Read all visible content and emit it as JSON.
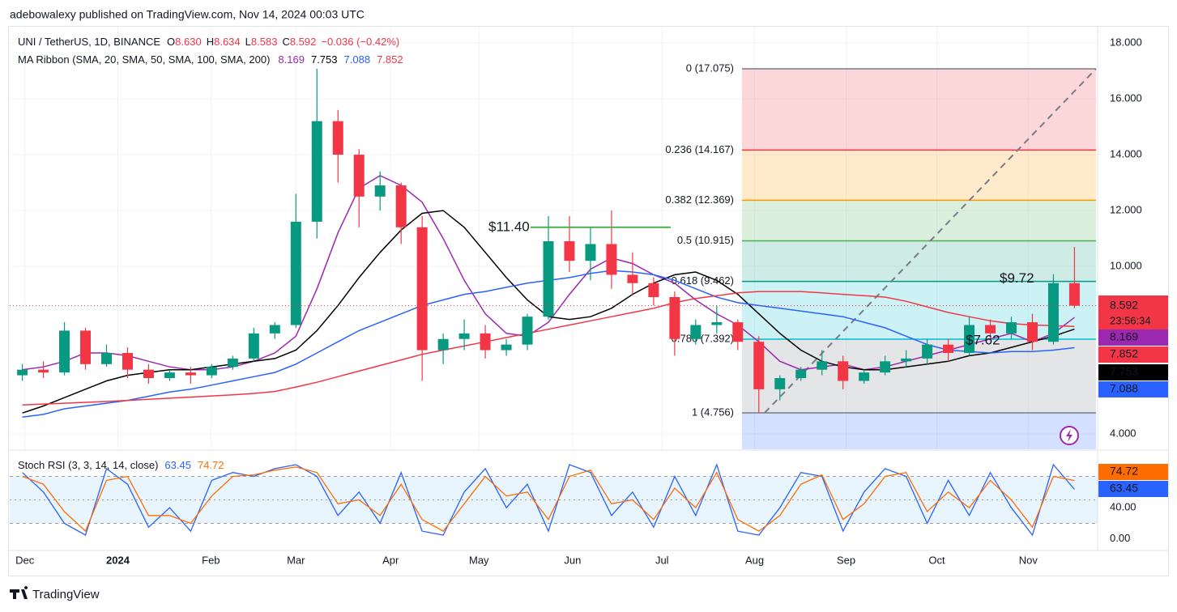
{
  "header": {
    "publisher": "adebowalexy published on TradingView.com, Nov 14, 2024 00:03 UTC",
    "brand": "TradingView"
  },
  "chart_data": [
    {
      "type": "candlestick",
      "title": "UNI / TetherUS, 1D, BINANCE",
      "quote": [
        {
          "key": "O",
          "value": "8.630"
        },
        {
          "key": "H",
          "value": "8.634"
        },
        {
          "key": "L",
          "value": "8.583"
        },
        {
          "key": "C",
          "value": "8.592"
        }
      ],
      "change": "−0.036 (−0.42%)",
      "countdown": "23:56:34",
      "up_color": "#089981",
      "down_color": "#f23645",
      "open": [
        6.1,
        6.3,
        6.2,
        7.7,
        6.5,
        6.9,
        6.3,
        6.0,
        6.2,
        6.1,
        6.4,
        6.7,
        7.6,
        7.9,
        11.6,
        15.2,
        14.0,
        12.5,
        12.9,
        11.4,
        7.0,
        7.4,
        7.6,
        7.0,
        7.2,
        8.2,
        10.9,
        10.2,
        10.8,
        9.7,
        9.4,
        8.9,
        7.4,
        7.9,
        8.0,
        7.3,
        5.6,
        6.0,
        6.3,
        6.6,
        5.9,
        6.2,
        6.6,
        6.7,
        7.2,
        6.9,
        7.9,
        7.6,
        8.0,
        7.3,
        9.4
      ],
      "high": [
        6.5,
        6.6,
        8.0,
        7.8,
        7.2,
        7.1,
        6.5,
        6.3,
        6.4,
        6.5,
        6.8,
        7.8,
        8.0,
        12.6,
        17.075,
        15.6,
        14.2,
        13.4,
        13.0,
        11.8,
        7.6,
        8.1,
        7.9,
        7.4,
        8.3,
        11.8,
        11.8,
        11.4,
        12.0,
        10.5,
        9.6,
        9.1,
        8.1,
        8.6,
        8.1,
        7.5,
        6.1,
        6.4,
        7.0,
        6.8,
        6.3,
        6.8,
        7.0,
        7.4,
        7.4,
        8.2,
        8.1,
        8.2,
        8.3,
        9.72,
        10.7
      ],
      "low": [
        5.9,
        6.0,
        6.1,
        6.3,
        6.4,
        6.0,
        5.8,
        5.9,
        5.8,
        6.0,
        6.3,
        6.6,
        7.4,
        7.8,
        11.0,
        13.0,
        11.4,
        12.0,
        10.8,
        5.9,
        6.5,
        7.0,
        6.7,
        6.8,
        7.0,
        8.1,
        9.8,
        9.5,
        9.2,
        9.0,
        8.6,
        6.8,
        7.2,
        7.6,
        7.0,
        4.756,
        5.2,
        5.9,
        6.1,
        5.6,
        5.8,
        6.1,
        6.4,
        6.5,
        6.6,
        6.8,
        7.4,
        7.4,
        7.0,
        7.2,
        8.5
      ],
      "close": [
        6.3,
        6.2,
        7.7,
        6.5,
        6.9,
        6.3,
        6.0,
        6.2,
        6.1,
        6.4,
        6.7,
        7.6,
        7.9,
        11.6,
        15.2,
        14.0,
        12.5,
        12.9,
        11.4,
        7.0,
        7.4,
        7.6,
        7.0,
        7.2,
        8.2,
        10.9,
        10.2,
        10.8,
        9.7,
        9.4,
        8.9,
        7.4,
        7.9,
        8.0,
        7.3,
        5.6,
        6.0,
        6.3,
        6.6,
        5.9,
        6.2,
        6.6,
        6.7,
        7.2,
        6.9,
        7.9,
        7.6,
        8.0,
        7.3,
        9.4,
        8.592
      ],
      "ribbon_title": "MA Ribbon (SMA, 20, SMA, 50, SMA, 100, SMA, 200)",
      "series": [
        {
          "color": "#9c27b0",
          "values": [
            6.3,
            6.4,
            6.6,
            6.9,
            6.9,
            6.8,
            6.6,
            6.4,
            6.3,
            6.3,
            6.4,
            6.6,
            6.9,
            7.5,
            9.2,
            11.2,
            12.8,
            13.25,
            12.9,
            12.3,
            11.0,
            9.5,
            8.3,
            7.6,
            7.5,
            8.0,
            9.0,
            9.9,
            10.3,
            10.1,
            9.7,
            9.4,
            8.8,
            8.3,
            7.9,
            7.3,
            6.6,
            6.3,
            6.4,
            6.5,
            6.3,
            6.4,
            6.6,
            6.8,
            7.0,
            7.2,
            7.4,
            7.6,
            7.3,
            7.6,
            8.169
          ]
        },
        {
          "color": "#000000",
          "values": [
            4.75,
            5.0,
            5.3,
            5.6,
            5.9,
            6.1,
            6.2,
            6.3,
            6.3,
            6.4,
            6.5,
            6.6,
            6.7,
            7.0,
            7.7,
            8.6,
            9.6,
            10.5,
            11.3,
            11.9,
            12.0,
            11.4,
            10.5,
            9.6,
            8.8,
            8.2,
            8.1,
            8.2,
            8.5,
            9.0,
            9.4,
            9.7,
            9.8,
            9.5,
            9.0,
            8.3,
            7.6,
            7.0,
            6.6,
            6.4,
            6.3,
            6.3,
            6.4,
            6.5,
            6.6,
            6.8,
            6.9,
            7.1,
            7.3,
            7.5,
            7.753
          ]
        },
        {
          "color": "#2962ff",
          "values": [
            4.6,
            4.7,
            4.9,
            5.0,
            5.1,
            5.2,
            5.35,
            5.5,
            5.6,
            5.75,
            5.9,
            6.05,
            6.2,
            6.5,
            6.9,
            7.3,
            7.7,
            8.0,
            8.3,
            8.6,
            8.8,
            9.0,
            9.1,
            9.25,
            9.4,
            9.5,
            9.6,
            9.75,
            9.85,
            9.8,
            9.7,
            9.5,
            9.2,
            8.9,
            8.7,
            8.6,
            8.5,
            8.4,
            8.3,
            8.2,
            8.0,
            7.8,
            7.5,
            7.2,
            7.0,
            6.95,
            6.9,
            6.95,
            6.95,
            7.0,
            7.088
          ]
        },
        {
          "color": "#f23645",
          "values": [
            5.04,
            5.07,
            5.1,
            5.13,
            5.16,
            5.2,
            5.24,
            5.28,
            5.32,
            5.36,
            5.4,
            5.45,
            5.52,
            5.68,
            5.85,
            6.05,
            6.25,
            6.45,
            6.65,
            6.85,
            7.0,
            7.15,
            7.3,
            7.45,
            7.6,
            7.75,
            7.9,
            8.05,
            8.2,
            8.35,
            8.5,
            8.7,
            8.85,
            8.95,
            9.05,
            9.1,
            9.1,
            9.1,
            9.05,
            9.0,
            8.95,
            8.9,
            8.75,
            8.55,
            8.35,
            8.2,
            8.05,
            7.95,
            7.9,
            7.88,
            7.852
          ]
        }
      ],
      "ylim": [
        3.45,
        18.38
      ],
      "yticks": [
        {
          "value": 4,
          "label": "4.000"
        },
        {
          "value": 10,
          "label": "10.000"
        },
        {
          "value": 12,
          "label": "12.000"
        },
        {
          "value": 14,
          "label": "14.000"
        },
        {
          "value": 16,
          "label": "16.000"
        },
        {
          "value": 18,
          "label": "18.000"
        }
      ],
      "xlim": [
        -0.6,
        51.1
      ],
      "xticks": [
        {
          "value": 0.12,
          "label": "Dec"
        },
        {
          "value": 4.54,
          "label": "2024"
        },
        {
          "value": 8.96,
          "label": "Feb"
        },
        {
          "value": 13.0,
          "label": "Mar"
        },
        {
          "value": 17.5,
          "label": "Apr"
        },
        {
          "value": 21.7,
          "label": "May"
        },
        {
          "value": 26.15,
          "label": "Jun"
        },
        {
          "value": 30.4,
          "label": "Jul"
        },
        {
          "value": 34.8,
          "label": "Aug"
        },
        {
          "value": 39.15,
          "label": "Sep"
        },
        {
          "value": 43.46,
          "label": "Oct"
        },
        {
          "value": 47.8,
          "label": "Nov"
        }
      ],
      "grid": true,
      "fib": {
        "levels": [
          {
            "label": "0 (17.075)",
            "price": 17.075,
            "color": "#787b86"
          },
          {
            "label": "0.236 (14.167)",
            "price": 14.167,
            "color": "#f23645"
          },
          {
            "label": "0.382 (12.369)",
            "price": 12.369,
            "color": "#ff9800"
          },
          {
            "label": "0.5 (10.915)",
            "price": 10.915,
            "color": "#4caf50"
          },
          {
            "label": "0.618 (9.462)",
            "price": 9.462,
            "color": "#089981"
          },
          {
            "label": "0.786 (7.392)",
            "price": 7.392,
            "color": "#00bcd4"
          },
          {
            "label": "1 (4.756)",
            "price": 4.756,
            "color": "#787b86"
          }
        ],
        "below_color": "#2962ff"
      },
      "annotations": [
        {
          "label": "$11.40",
          "price": 11.4,
          "line_color": "#4caf50"
        },
        {
          "label": "$9.72",
          "price": 9.72
        },
        {
          "label": "$7.62",
          "price": 7.62
        }
      ]
    },
    {
      "type": "line",
      "title": "Stoch RSI (3, 3, 14, 14, close)",
      "series": [
        {
          "color": "#2962ff",
          "values": [
            85,
            60,
            20,
            5,
            90,
            70,
            15,
            40,
            10,
            75,
            85,
            80,
            90,
            95,
            80,
            30,
            60,
            20,
            85,
            10,
            5,
            60,
            90,
            40,
            70,
            10,
            95,
            85,
            30,
            60,
            15,
            80,
            30,
            95,
            10,
            5,
            40,
            85,
            80,
            10,
            60,
            90,
            80,
            20,
            75,
            30,
            85,
            40,
            5,
            95,
            63.45
          ]
        },
        {
          "color": "#ff6d00",
          "values": [
            80,
            70,
            35,
            10,
            75,
            80,
            30,
            30,
            20,
            55,
            80,
            82,
            88,
            92,
            85,
            45,
            50,
            30,
            70,
            25,
            10,
            45,
            80,
            55,
            60,
            25,
            80,
            88,
            45,
            50,
            25,
            65,
            40,
            85,
            25,
            10,
            30,
            70,
            82,
            25,
            45,
            80,
            85,
            35,
            60,
            40,
            75,
            50,
            15,
            80,
            74.72
          ]
        }
      ],
      "ylim": [
        -14.7,
        111.6
      ],
      "yticks": [
        {
          "value": 0,
          "label": "0.00"
        },
        {
          "value": 40,
          "label": "40.00"
        }
      ],
      "bands": [
        20,
        50,
        80
      ],
      "xlim": [
        -0.6,
        51.1
      ]
    }
  ]
}
